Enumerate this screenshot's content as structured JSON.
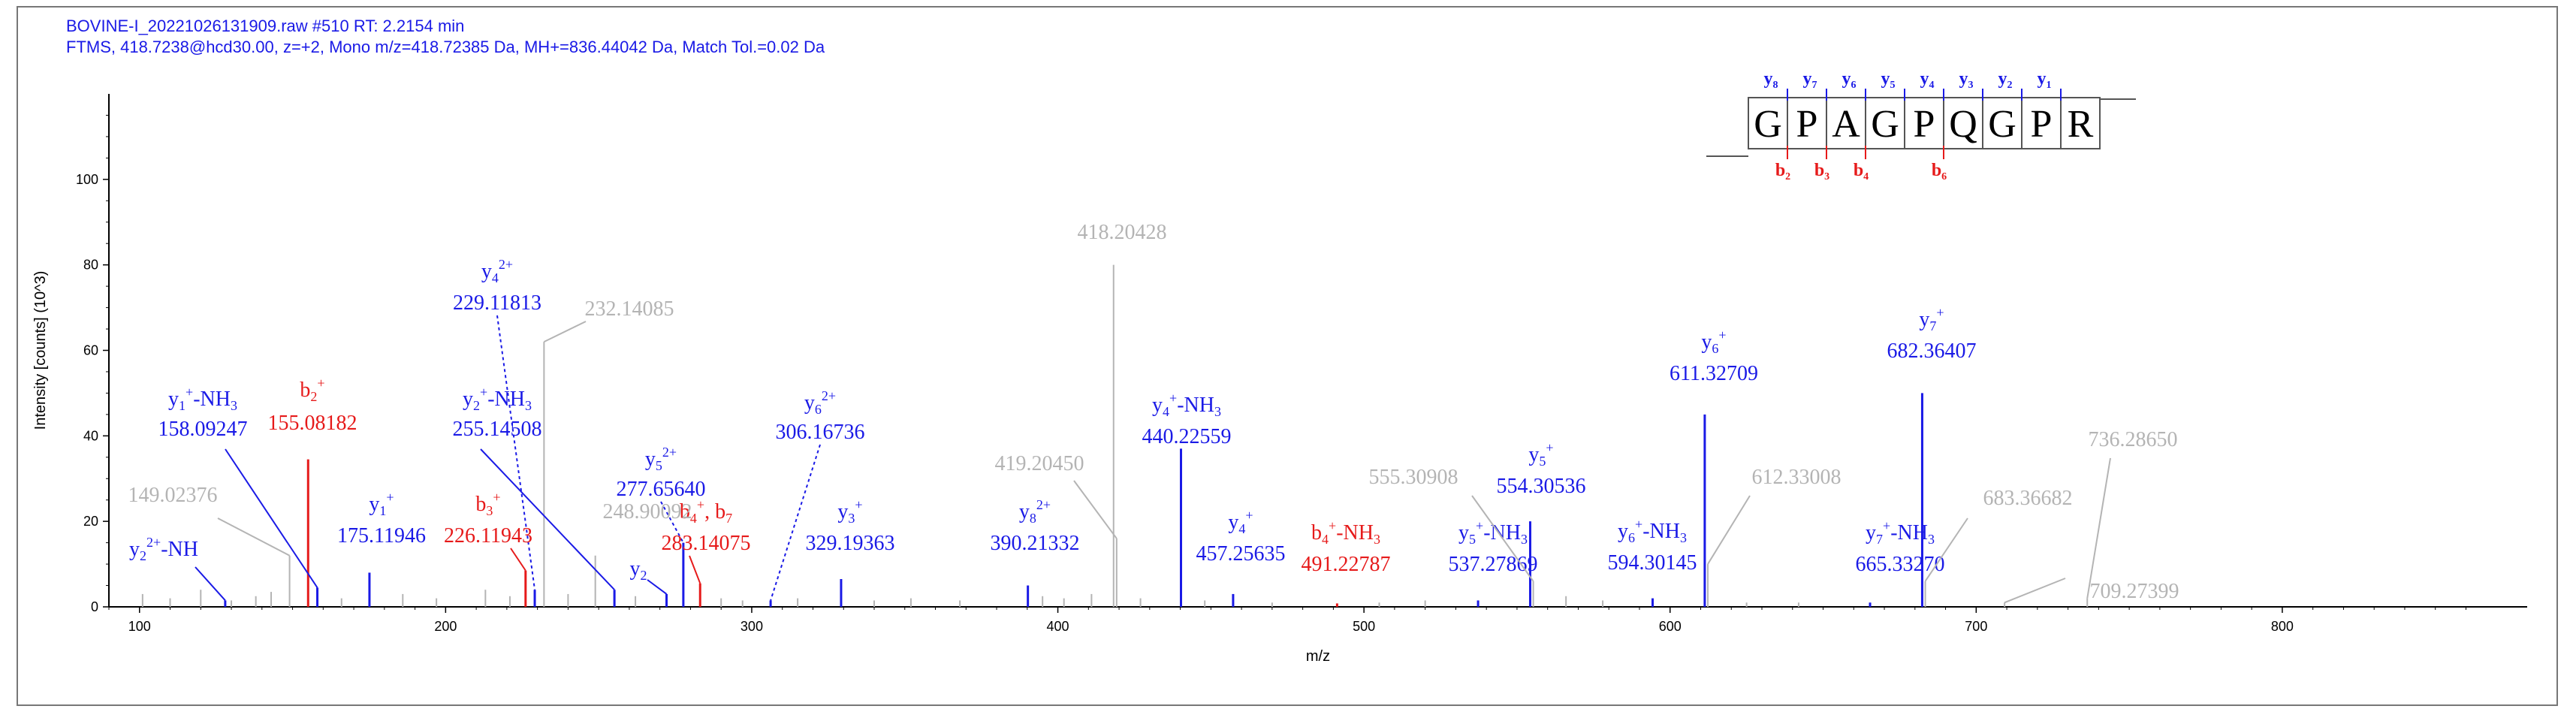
{
  "header": {
    "line1": "BOVINE-I_20221026131909.raw  #510  RT: 2.2154 min",
    "line2": "FTMS, 418.7238@hcd30.00, z=+2, Mono m/z=418.72385 Da, MH+=836.44042 Da, Match Tol.=0.02 Da"
  },
  "colors": {
    "y_ion": "#1a1ae6",
    "b_ion": "#e61a1a",
    "unmatched": "#b4b4b4",
    "axis": "#000000"
  },
  "sequence": {
    "residues": [
      "G",
      "P",
      "A",
      "G",
      "P",
      "Q",
      "G",
      "P",
      "R"
    ],
    "y_labels": [
      "y8",
      "y7",
      "y6",
      "y5",
      "y4",
      "y3",
      "y2",
      "y1"
    ],
    "b_labels": [
      {
        "after": 1,
        "label": "b2"
      },
      {
        "after": 2,
        "label": "b3"
      },
      {
        "after": 3,
        "label": "b4"
      },
      {
        "after": 5,
        "label": "b6"
      }
    ]
  },
  "chart_data": {
    "type": "bar",
    "xlabel": "m/z",
    "ylabel": "Intensity [counts] (10^3)",
    "xlim": [
      90,
      880
    ],
    "ylim": [
      0,
      120
    ],
    "xticks": [
      100,
      200,
      300,
      400,
      500,
      600,
      700,
      800
    ],
    "yticks": [
      0,
      20,
      40,
      60,
      80,
      100
    ],
    "peaks": [
      {
        "mz": 158.09247,
        "intensity": 4.5,
        "type": "y",
        "label": "y1+-NH3",
        "value": "158.09247"
      },
      {
        "mz": 155.08182,
        "intensity": 34.5,
        "type": "b",
        "label": "b2+",
        "value": "155.08182"
      },
      {
        "mz": 175.11946,
        "intensity": 8.0,
        "type": "y",
        "label": "y1+",
        "value": "175.11946"
      },
      {
        "mz": 229.11813,
        "intensity": 4.0,
        "type": "y",
        "label": "y4 2+",
        "value": "229.11813"
      },
      {
        "mz": 255.14508,
        "intensity": 4.0,
        "type": "y",
        "label": "y2+-NH3",
        "value": "255.14508"
      },
      {
        "mz": 226.11943,
        "intensity": 8.5,
        "type": "b",
        "label": "b3+",
        "value": "226.11943"
      },
      {
        "mz": 272.17,
        "intensity": 3.0,
        "type": "y",
        "label": "y2",
        "value": ""
      },
      {
        "mz": 277.6564,
        "intensity": 15.0,
        "type": "y",
        "label": "y5 2+",
        "value": "277.65640"
      },
      {
        "mz": 283.14075,
        "intensity": 5.5,
        "type": "b",
        "label": "b4+, b7 2+",
        "value": "283.14075"
      },
      {
        "mz": 306.16736,
        "intensity": 1.5,
        "type": "y",
        "label": "y6 2+",
        "value": "306.16736"
      },
      {
        "mz": 329.19363,
        "intensity": 6.5,
        "type": "y",
        "label": "y3+",
        "value": "329.19363"
      },
      {
        "mz": 390.21332,
        "intensity": 5.0,
        "type": "y",
        "label": "y8 2+",
        "value": "390.21332"
      },
      {
        "mz": 440.22559,
        "intensity": 37.0,
        "type": "y",
        "label": "y4+-NH3",
        "value": "440.22559"
      },
      {
        "mz": 457.25635,
        "intensity": 3.0,
        "type": "y",
        "label": "y4+",
        "value": "457.25635"
      },
      {
        "mz": 491.22787,
        "intensity": 0.8,
        "type": "b",
        "label": "b4+-NH3",
        "value": "491.22787"
      },
      {
        "mz": 537.27869,
        "intensity": 1.5,
        "type": "y",
        "label": "y5+-NH3",
        "value": "537.27869"
      },
      {
        "mz": 554.30536,
        "intensity": 20.0,
        "type": "y",
        "label": "y5+",
        "value": "554.30536"
      },
      {
        "mz": 594.30145,
        "intensity": 2.0,
        "type": "y",
        "label": "y6+-NH3",
        "value": "594.30145"
      },
      {
        "mz": 611.32709,
        "intensity": 45.0,
        "type": "y",
        "label": "y6+",
        "value": "611.32709"
      },
      {
        "mz": 665.3327,
        "intensity": 1.0,
        "type": "y",
        "label": "y7+-NH3",
        "value": "665.33270"
      },
      {
        "mz": 682.36407,
        "intensity": 50.0,
        "type": "y",
        "label": "y7+",
        "value": "682.36407"
      },
      {
        "mz": 128.0,
        "intensity": 1.5,
        "type": "y",
        "label": "y2 2+-NH",
        "value": ""
      },
      {
        "mz": 149.02376,
        "intensity": 12.0,
        "type": "u",
        "value": "149.02376"
      },
      {
        "mz": 232.14085,
        "intensity": 62.0,
        "type": "u",
        "value": "232.14085"
      },
      {
        "mz": 248.90092,
        "intensity": 12.0,
        "type": "u",
        "value": "248.90092"
      },
      {
        "mz": 418.20428,
        "intensity": 80.0,
        "type": "u",
        "value": "418.20428"
      },
      {
        "mz": 419.2045,
        "intensity": 16.0,
        "type": "u",
        "value": "419.20450"
      },
      {
        "mz": 555.30908,
        "intensity": 6.0,
        "type": "u",
        "value": "555.30908"
      },
      {
        "mz": 612.33008,
        "intensity": 10.0,
        "type": "u",
        "value": "612.33008"
      },
      {
        "mz": 683.36682,
        "intensity": 6.0,
        "type": "u",
        "value": "683.36682"
      },
      {
        "mz": 709.27399,
        "intensity": 1.0,
        "type": "u",
        "value": "709.27399"
      },
      {
        "mz": 736.2865,
        "intensity": 2.0,
        "type": "u",
        "value": "736.28650"
      },
      {
        "mz": 101.0,
        "intensity": 3.0,
        "type": "u",
        "value": ""
      },
      {
        "mz": 110.0,
        "intensity": 2.0,
        "type": "u",
        "value": ""
      },
      {
        "mz": 120.0,
        "intensity": 4.0,
        "type": "u",
        "value": ""
      },
      {
        "mz": 130.0,
        "intensity": 1.5,
        "type": "u",
        "value": ""
      },
      {
        "mz": 138.0,
        "intensity": 2.5,
        "type": "u",
        "value": ""
      },
      {
        "mz": 143.0,
        "intensity": 3.5,
        "type": "u",
        "value": ""
      },
      {
        "mz": 166.0,
        "intensity": 2.0,
        "type": "u",
        "value": ""
      },
      {
        "mz": 186.0,
        "intensity": 3.0,
        "type": "u",
        "value": ""
      },
      {
        "mz": 197.0,
        "intensity": 2.0,
        "type": "u",
        "value": ""
      },
      {
        "mz": 213.0,
        "intensity": 4.0,
        "type": "u",
        "value": ""
      },
      {
        "mz": 221.0,
        "intensity": 2.5,
        "type": "u",
        "value": ""
      },
      {
        "mz": 240.0,
        "intensity": 3.0,
        "type": "u",
        "value": ""
      },
      {
        "mz": 262.0,
        "intensity": 2.5,
        "type": "u",
        "value": ""
      },
      {
        "mz": 290.0,
        "intensity": 2.0,
        "type": "u",
        "value": ""
      },
      {
        "mz": 297.0,
        "intensity": 1.5,
        "type": "u",
        "value": ""
      },
      {
        "mz": 315.0,
        "intensity": 2.0,
        "type": "u",
        "value": ""
      },
      {
        "mz": 340.0,
        "intensity": 1.5,
        "type": "u",
        "value": ""
      },
      {
        "mz": 352.0,
        "intensity": 2.0,
        "type": "u",
        "value": ""
      },
      {
        "mz": 368.0,
        "intensity": 1.5,
        "type": "u",
        "value": ""
      },
      {
        "mz": 395.0,
        "intensity": 2.5,
        "type": "u",
        "value": ""
      },
      {
        "mz": 402.0,
        "intensity": 2.0,
        "type": "u",
        "value": ""
      },
      {
        "mz": 411.0,
        "intensity": 3.0,
        "type": "u",
        "value": ""
      },
      {
        "mz": 427.0,
        "intensity": 2.0,
        "type": "u",
        "value": ""
      },
      {
        "mz": 448.0,
        "intensity": 1.5,
        "type": "u",
        "value": ""
      },
      {
        "mz": 470.0,
        "intensity": 1.0,
        "type": "u",
        "value": ""
      },
      {
        "mz": 505.0,
        "intensity": 1.0,
        "type": "u",
        "value": ""
      },
      {
        "mz": 520.0,
        "intensity": 1.5,
        "type": "u",
        "value": ""
      },
      {
        "mz": 566.0,
        "intensity": 2.5,
        "type": "u",
        "value": ""
      },
      {
        "mz": 578.0,
        "intensity": 1.5,
        "type": "u",
        "value": ""
      },
      {
        "mz": 625.0,
        "intensity": 1.0,
        "type": "u",
        "value": ""
      },
      {
        "mz": 642.0,
        "intensity": 1.0,
        "type": "u",
        "value": ""
      }
    ]
  }
}
